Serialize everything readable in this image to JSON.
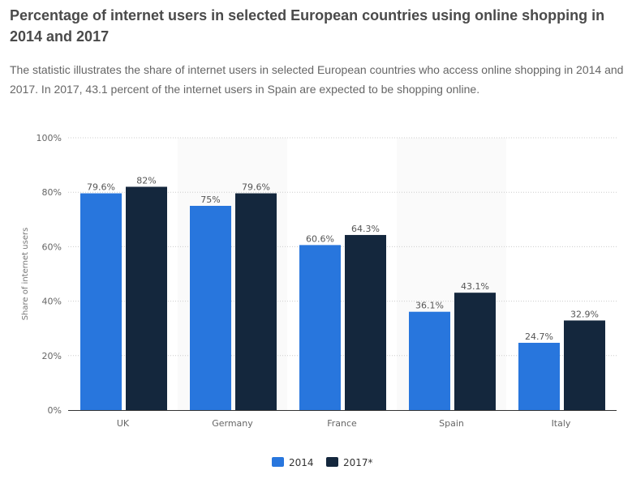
{
  "header": {
    "title": "Percentage of internet users in selected European countries using online shopping in 2014 and 2017",
    "description": "The statistic illustrates the share of internet users in selected European countries who access online shopping in 2014 and 2017. In 2017, 43.1 percent of the internet users in Spain are expected to be shopping online."
  },
  "chart_data": {
    "type": "bar",
    "title": "Percentage of internet users in selected European countries using online shopping in 2014 and 2017",
    "xlabel": "",
    "ylabel": "Share of internet users",
    "ylim": [
      0,
      100
    ],
    "yticks": [
      0,
      20,
      40,
      60,
      80,
      100
    ],
    "ytick_labels": [
      "0%",
      "20%",
      "40%",
      "60%",
      "80%",
      "100%"
    ],
    "categories": [
      "UK",
      "Germany",
      "France",
      "Spain",
      "Italy"
    ],
    "series": [
      {
        "name": "2014",
        "color": "#2876dd",
        "values": [
          79.6,
          75,
          60.6,
          36.1,
          24.7
        ],
        "labels": [
          "79.6%",
          "75%",
          "60.6%",
          "36.1%",
          "24.7%"
        ]
      },
      {
        "name": "2017*",
        "color": "#14273d",
        "values": [
          82,
          79.6,
          64.3,
          43.1,
          32.9
        ],
        "labels": [
          "82%",
          "79.6%",
          "64.3%",
          "43.1%",
          "32.9%"
        ]
      }
    ],
    "grid": true,
    "legend": "bottom-center"
  }
}
